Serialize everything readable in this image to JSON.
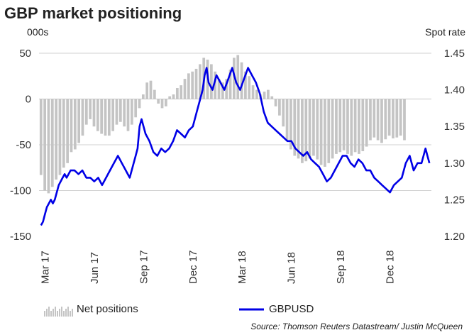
{
  "chart_data": {
    "type": "bar+line",
    "title": "GBP market positioning",
    "left_axis_unit": "000s",
    "right_axis_unit": "Spot rate",
    "source": "Source: Thomson Reuters Datastream/ Justin McQueen",
    "ylim_left": [
      -150,
      50
    ],
    "ylim_right": [
      1.2,
      1.45
    ],
    "left_ticks": [
      "50",
      "0",
      "-50",
      "-100",
      "-150"
    ],
    "left_tick_values": [
      50,
      0,
      -50,
      -100,
      -150
    ],
    "right_ticks": [
      "1.45",
      "1.40",
      "1.35",
      "1.30",
      "1.25",
      "1.20"
    ],
    "right_tick_values": [
      1.45,
      1.4,
      1.35,
      1.3,
      1.25,
      1.2
    ],
    "x_ticks": [
      "Mar 17",
      "Jun 17",
      "Sep 17",
      "Dec 17",
      "Mar 18",
      "Jun 18",
      "Sep 18",
      "Dec 18"
    ],
    "x_tick_positions": [
      2017.17,
      2017.42,
      2017.67,
      2017.92,
      2018.17,
      2018.42,
      2018.67,
      2018.92
    ],
    "x_range": [
      2017.14,
      2019.13
    ],
    "grid": "horizontal",
    "series": [
      {
        "name": "Net positions",
        "type": "bar",
        "axis": "left",
        "color": "#c4c4c4",
        "x_start": 2017.15,
        "x_step": 0.0192,
        "values": [
          -83,
          -100,
          -103,
          -96,
          -88,
          -83,
          -75,
          -70,
          -58,
          -55,
          -48,
          -40,
          -28,
          -22,
          -30,
          -35,
          -38,
          -40,
          -40,
          -35,
          -28,
          -25,
          -30,
          -35,
          -28,
          -20,
          -10,
          5,
          18,
          20,
          10,
          -5,
          -10,
          -8,
          3,
          5,
          12,
          15,
          22,
          28,
          30,
          33,
          38,
          45,
          43,
          38,
          30,
          22,
          18,
          22,
          32,
          45,
          48,
          40,
          30,
          25,
          15,
          10,
          5,
          8,
          10,
          3,
          -8,
          -18,
          -30,
          -45,
          -55,
          -62,
          -65,
          -70,
          -68,
          -65,
          -62,
          -66,
          -72,
          -74,
          -70,
          -65,
          -60,
          -58,
          -56,
          -60,
          -62,
          -58,
          -60,
          -57,
          -52,
          -45,
          -42,
          -45,
          -48,
          -44,
          -40,
          -43,
          -42,
          -40,
          -45
        ]
      },
      {
        "name": "GBPUSD",
        "type": "line",
        "axis": "right",
        "color": "#0000e6",
        "points": [
          [
            2017.15,
            1.215
          ],
          [
            2017.16,
            1.22
          ],
          [
            2017.17,
            1.23
          ],
          [
            2017.18,
            1.24
          ],
          [
            2017.19,
            1.245
          ],
          [
            2017.2,
            1.25
          ],
          [
            2017.21,
            1.245
          ],
          [
            2017.22,
            1.25
          ],
          [
            2017.23,
            1.26
          ],
          [
            2017.24,
            1.27
          ],
          [
            2017.26,
            1.28
          ],
          [
            2017.27,
            1.285
          ],
          [
            2017.28,
            1.28
          ],
          [
            2017.3,
            1.29
          ],
          [
            2017.32,
            1.29
          ],
          [
            2017.34,
            1.285
          ],
          [
            2017.36,
            1.29
          ],
          [
            2017.38,
            1.28
          ],
          [
            2017.4,
            1.28
          ],
          [
            2017.42,
            1.275
          ],
          [
            2017.44,
            1.28
          ],
          [
            2017.46,
            1.27
          ],
          [
            2017.48,
            1.28
          ],
          [
            2017.5,
            1.29
          ],
          [
            2017.52,
            1.3
          ],
          [
            2017.54,
            1.31
          ],
          [
            2017.56,
            1.3
          ],
          [
            2017.58,
            1.29
          ],
          [
            2017.6,
            1.28
          ],
          [
            2017.62,
            1.3
          ],
          [
            2017.63,
            1.31
          ],
          [
            2017.64,
            1.32
          ],
          [
            2017.65,
            1.35
          ],
          [
            2017.66,
            1.36
          ],
          [
            2017.67,
            1.35
          ],
          [
            2017.68,
            1.34
          ],
          [
            2017.7,
            1.33
          ],
          [
            2017.72,
            1.315
          ],
          [
            2017.74,
            1.31
          ],
          [
            2017.76,
            1.32
          ],
          [
            2017.78,
            1.315
          ],
          [
            2017.8,
            1.32
          ],
          [
            2017.82,
            1.33
          ],
          [
            2017.84,
            1.345
          ],
          [
            2017.86,
            1.34
          ],
          [
            2017.88,
            1.335
          ],
          [
            2017.9,
            1.345
          ],
          [
            2017.92,
            1.35
          ],
          [
            2017.94,
            1.37
          ],
          [
            2017.96,
            1.39
          ],
          [
            2017.97,
            1.4
          ],
          [
            2017.98,
            1.42
          ],
          [
            2017.99,
            1.43
          ],
          [
            2018.0,
            1.41
          ],
          [
            2018.02,
            1.4
          ],
          [
            2018.04,
            1.42
          ],
          [
            2018.06,
            1.41
          ],
          [
            2018.08,
            1.4
          ],
          [
            2018.1,
            1.415
          ],
          [
            2018.12,
            1.43
          ],
          [
            2018.14,
            1.41
          ],
          [
            2018.16,
            1.4
          ],
          [
            2018.18,
            1.415
          ],
          [
            2018.2,
            1.43
          ],
          [
            2018.22,
            1.42
          ],
          [
            2018.24,
            1.41
          ],
          [
            2018.26,
            1.395
          ],
          [
            2018.28,
            1.37
          ],
          [
            2018.3,
            1.355
          ],
          [
            2018.32,
            1.35
          ],
          [
            2018.34,
            1.345
          ],
          [
            2018.36,
            1.34
          ],
          [
            2018.38,
            1.335
          ],
          [
            2018.4,
            1.33
          ],
          [
            2018.42,
            1.33
          ],
          [
            2018.44,
            1.32
          ],
          [
            2018.46,
            1.315
          ],
          [
            2018.48,
            1.31
          ],
          [
            2018.5,
            1.315
          ],
          [
            2018.52,
            1.305
          ],
          [
            2018.54,
            1.3
          ],
          [
            2018.56,
            1.295
          ],
          [
            2018.58,
            1.285
          ],
          [
            2018.6,
            1.275
          ],
          [
            2018.62,
            1.28
          ],
          [
            2018.64,
            1.29
          ],
          [
            2018.66,
            1.3
          ],
          [
            2018.68,
            1.31
          ],
          [
            2018.7,
            1.31
          ],
          [
            2018.72,
            1.3
          ],
          [
            2018.74,
            1.295
          ],
          [
            2018.76,
            1.305
          ],
          [
            2018.78,
            1.3
          ],
          [
            2018.8,
            1.29
          ],
          [
            2018.82,
            1.29
          ],
          [
            2018.84,
            1.28
          ],
          [
            2018.86,
            1.275
          ],
          [
            2018.88,
            1.27
          ],
          [
            2018.9,
            1.265
          ],
          [
            2018.92,
            1.26
          ],
          [
            2018.94,
            1.27
          ],
          [
            2018.96,
            1.275
          ],
          [
            2018.98,
            1.28
          ],
          [
            2019.0,
            1.3
          ],
          [
            2019.02,
            1.31
          ],
          [
            2019.04,
            1.29
          ],
          [
            2019.06,
            1.3
          ],
          [
            2019.08,
            1.3
          ],
          [
            2019.1,
            1.32
          ],
          [
            2019.11,
            1.31
          ],
          [
            2019.12,
            1.3
          ]
        ]
      }
    ]
  }
}
